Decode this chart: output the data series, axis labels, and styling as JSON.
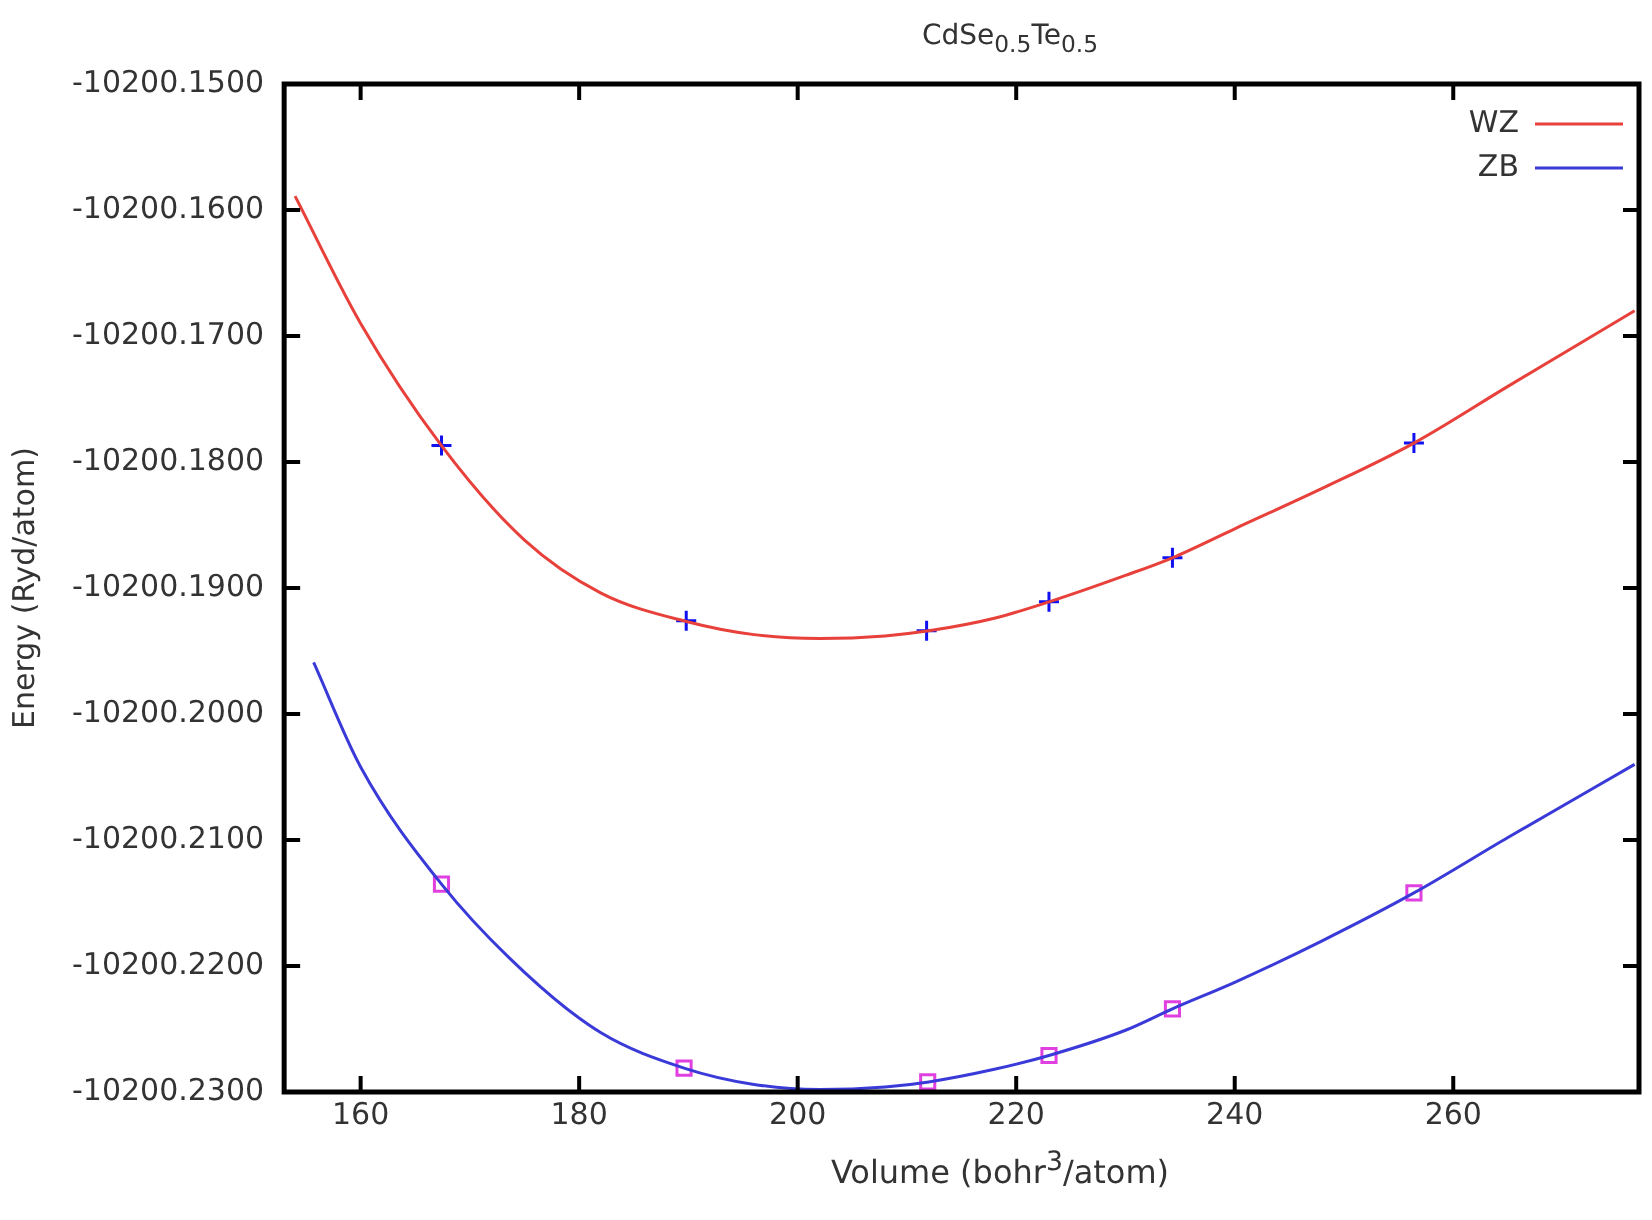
{
  "chart_data": {
    "type": "line",
    "title": "CdSe$_{0.5}$Te$_{0.5}$",
    "xlabel": "Volume (bohr$^{3}$/atom)",
    "ylabel": "Energy (Ryd/atom)",
    "xlim": [
      153,
      277
    ],
    "xticks": [
      160,
      180,
      200,
      220,
      240,
      260
    ],
    "ylim": [
      -10200.23,
      -10200.15
    ],
    "yticks": [
      {
        "value": -10200.23,
        "label": "-10200.2300"
      },
      {
        "value": -10200.22,
        "label": "-10200.2200"
      },
      {
        "value": -10200.21,
        "label": "-10200.2100"
      },
      {
        "value": -10200.2,
        "label": "-10200.2000"
      },
      {
        "value": -10200.19,
        "label": "-10200.1900"
      },
      {
        "value": -10200.18,
        "label": "-10200.1800"
      },
      {
        "value": -10200.17,
        "label": "-10200.1700"
      },
      {
        "value": -10200.16,
        "label": "-10200.1600"
      },
      {
        "value": -10200.15,
        "label": "-10200.1500"
      }
    ],
    "grid": false,
    "legend": "top right",
    "series": [
      {
        "name": "WZ",
        "type": "line",
        "color": "#e8403a",
        "marker": "none",
        "x": [
          154,
          160,
          167.4,
          175,
          182,
          190,
          196,
          202,
          208,
          212,
          218,
          223,
          230,
          234.3,
          240,
          248,
          256.4,
          265,
          276.6
        ],
        "values": [
          -10200.1589,
          -10200.169,
          -10200.1787,
          -10200.1862,
          -10200.1904,
          -10200.1927,
          -10200.1937,
          -10200.194,
          -10200.1938,
          -10200.1934,
          -10200.1924,
          -10200.1911,
          -10200.189,
          -10200.1876,
          -10200.1853,
          -10200.1821,
          -10200.1785,
          -10200.174,
          -10200.168
        ]
      },
      {
        "name": "ZB",
        "type": "line",
        "color": "#3a3ad8",
        "marker": "none",
        "x": [
          155.7,
          160,
          167.4,
          175,
          182,
          189.6,
          196,
          202,
          208,
          212,
          218,
          223,
          230,
          234.3,
          240,
          248,
          256.4,
          265,
          276.6
        ],
        "values": [
          -10200.1959,
          -10200.2042,
          -10200.2135,
          -10200.2205,
          -10200.2253,
          -10200.2281,
          -10200.2294,
          -10200.2298,
          -10200.2296,
          -10200.2292,
          -10200.2282,
          -10200.2271,
          -10200.2251,
          -10200.2234,
          -10200.2213,
          -10200.218,
          -10200.2142,
          -10200.2098,
          -10200.204
        ]
      },
      {
        "type": "scatter",
        "color": "#1010f0",
        "marker": "cross",
        "x": [
          167.4,
          189.8,
          211.8,
          223,
          234.3,
          256.4
        ],
        "values": [
          -10200.1787,
          -10200.1926,
          -10200.1934,
          -10200.1911,
          -10200.1876,
          -10200.1785
        ]
      },
      {
        "type": "scatter",
        "color": "#e040e0",
        "marker": "square",
        "x": [
          167.4,
          189.6,
          211.9,
          223,
          234.3,
          256.4
        ],
        "values": [
          -10200.2135,
          -10200.2281,
          -10200.2292,
          -10200.2271,
          -10200.2234,
          -10200.2142
        ]
      }
    ]
  }
}
